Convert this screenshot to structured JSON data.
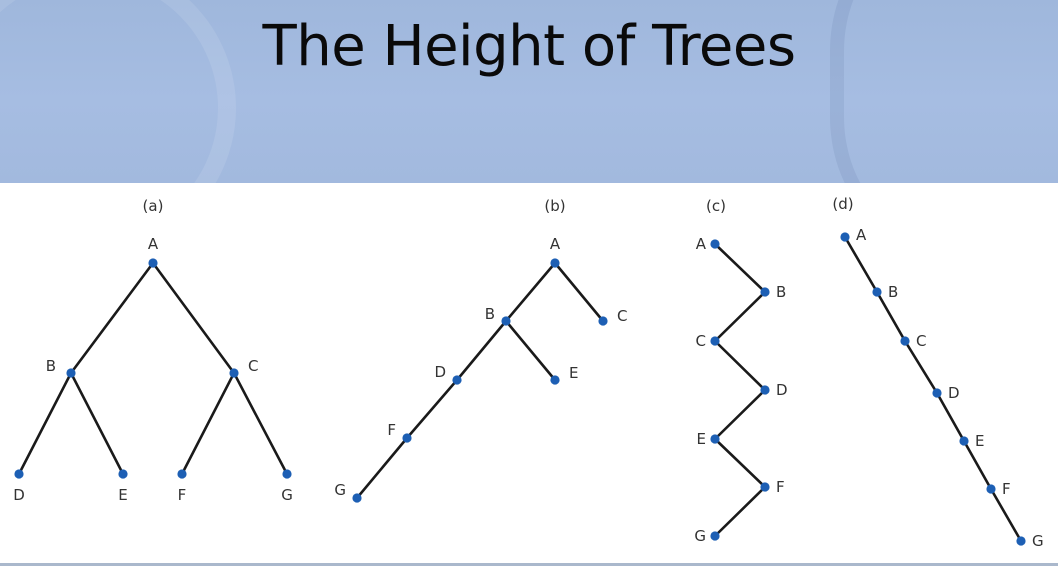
{
  "title": "The Height of Trees",
  "trees": [
    {
      "caption": "(a)",
      "nodes": [
        {
          "id": "A",
          "label": "A"
        },
        {
          "id": "B",
          "label": "B"
        },
        {
          "id": "C",
          "label": "C"
        },
        {
          "id": "D",
          "label": "D"
        },
        {
          "id": "E",
          "label": "E"
        },
        {
          "id": "F",
          "label": "F"
        },
        {
          "id": "G",
          "label": "G"
        }
      ],
      "edges": [
        [
          "A",
          "B"
        ],
        [
          "A",
          "C"
        ],
        [
          "B",
          "D"
        ],
        [
          "B",
          "E"
        ],
        [
          "C",
          "F"
        ],
        [
          "C",
          "G"
        ]
      ]
    },
    {
      "caption": "(b)",
      "nodes": [
        {
          "id": "A",
          "label": "A"
        },
        {
          "id": "B",
          "label": "B"
        },
        {
          "id": "C",
          "label": "C"
        },
        {
          "id": "D",
          "label": "D"
        },
        {
          "id": "E",
          "label": "E"
        },
        {
          "id": "F",
          "label": "F"
        },
        {
          "id": "G",
          "label": "G"
        }
      ],
      "edges": [
        [
          "A",
          "B"
        ],
        [
          "A",
          "C"
        ],
        [
          "B",
          "D"
        ],
        [
          "B",
          "E"
        ],
        [
          "D",
          "F"
        ],
        [
          "F",
          "G"
        ]
      ]
    },
    {
      "caption": "(c)",
      "nodes": [
        {
          "id": "A",
          "label": "A"
        },
        {
          "id": "B",
          "label": "B"
        },
        {
          "id": "C",
          "label": "C"
        },
        {
          "id": "D",
          "label": "D"
        },
        {
          "id": "E",
          "label": "E"
        },
        {
          "id": "F",
          "label": "F"
        },
        {
          "id": "G",
          "label": "G"
        }
      ],
      "edges": [
        [
          "A",
          "B"
        ],
        [
          "B",
          "C"
        ],
        [
          "C",
          "D"
        ],
        [
          "D",
          "E"
        ],
        [
          "E",
          "F"
        ],
        [
          "F",
          "G"
        ]
      ]
    },
    {
      "caption": "(d)",
      "nodes": [
        {
          "id": "A",
          "label": "A"
        },
        {
          "id": "B",
          "label": "B"
        },
        {
          "id": "C",
          "label": "C"
        },
        {
          "id": "D",
          "label": "D"
        },
        {
          "id": "E",
          "label": "E"
        },
        {
          "id": "F",
          "label": "F"
        },
        {
          "id": "G",
          "label": "G"
        }
      ],
      "edges": [
        [
          "A",
          "B"
        ],
        [
          "B",
          "C"
        ],
        [
          "C",
          "D"
        ],
        [
          "D",
          "E"
        ],
        [
          "E",
          "F"
        ],
        [
          "F",
          "G"
        ]
      ]
    }
  ],
  "colors": {
    "node": "#1d5fb4",
    "edge": "#1a1a1a"
  }
}
